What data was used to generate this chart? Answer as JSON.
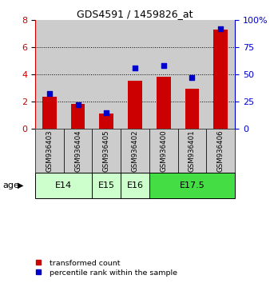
{
  "title": "GDS4591 / 1459826_at",
  "categories": [
    "GSM936403",
    "GSM936404",
    "GSM936405",
    "GSM936402",
    "GSM936400",
    "GSM936401",
    "GSM936406"
  ],
  "red_values": [
    2.35,
    1.85,
    1.1,
    3.55,
    3.8,
    2.95,
    7.3
  ],
  "blue_values_pct": [
    32,
    22,
    15,
    56,
    58,
    47,
    92
  ],
  "ylim_left": [
    0,
    8
  ],
  "ylim_right": [
    0,
    100
  ],
  "yticks_left": [
    0,
    2,
    4,
    6,
    8
  ],
  "yticks_right": [
    0,
    25,
    50,
    75,
    100
  ],
  "ytick_labels_right": [
    "0",
    "25",
    "50",
    "75",
    "100%"
  ],
  "left_axis_color": "#cc0000",
  "right_axis_color": "#0000cc",
  "bar_color": "#cc0000",
  "dot_color": "#0000cc",
  "bar_width": 0.5,
  "background_color": "#ffffff",
  "col_bg_color": "#cccccc",
  "age_groups": [
    {
      "label": "E14",
      "cols": [
        0,
        1
      ],
      "color": "#ccffcc"
    },
    {
      "label": "E15",
      "cols": [
        2
      ],
      "color": "#ccffcc"
    },
    {
      "label": "E16",
      "cols": [
        3
      ],
      "color": "#ccffcc"
    },
    {
      "label": "E17.5",
      "cols": [
        4,
        5,
        6
      ],
      "color": "#44dd44"
    }
  ],
  "legend_labels": [
    "transformed count",
    "percentile rank within the sample"
  ],
  "legend_colors": [
    "#cc0000",
    "#0000cc"
  ],
  "age_label": "age"
}
